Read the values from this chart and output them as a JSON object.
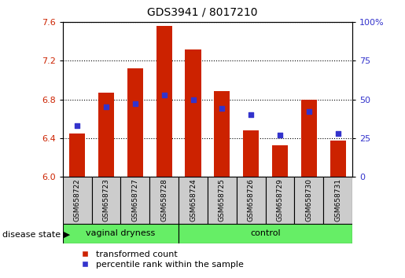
{
  "title": "GDS3941 / 8017210",
  "samples": [
    "GSM658722",
    "GSM658723",
    "GSM658727",
    "GSM658728",
    "GSM658724",
    "GSM658725",
    "GSM658726",
    "GSM658729",
    "GSM658730",
    "GSM658731"
  ],
  "bar_values": [
    6.45,
    6.87,
    7.12,
    7.56,
    7.32,
    6.89,
    6.48,
    6.32,
    6.8,
    6.37
  ],
  "percentile_values": [
    33,
    45,
    47,
    53,
    50,
    44,
    40,
    27,
    42,
    28
  ],
  "bar_baseline": 6.0,
  "ylim_left": [
    6.0,
    7.6
  ],
  "ylim_right": [
    0,
    100
  ],
  "yticks_left": [
    6.0,
    6.4,
    6.8,
    7.2,
    7.6
  ],
  "yticks_right": [
    0,
    25,
    50,
    75,
    100
  ],
  "bar_color": "#cc2200",
  "blue_color": "#3333cc",
  "plot_bg": "#ffffff",
  "label_bg": "#cccccc",
  "group_bg_color": "#66ee66",
  "group_labels": [
    "vaginal dryness",
    "control"
  ],
  "vaginal_dryness_count": 4,
  "control_count": 6,
  "legend_red_label": "transformed count",
  "legend_blue_label": "percentile rank within the sample",
  "disease_state_label": "disease state"
}
